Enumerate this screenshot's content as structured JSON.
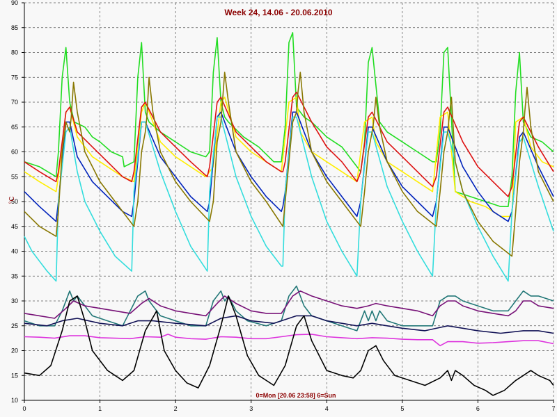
{
  "chart_data": {
    "type": "line",
    "title": "Week 24, 14.06 - 20.06.2010",
    "caption": "0=Mon [20.06 23:58] 6=Sun",
    "ylabel": "°C",
    "xlabel": "",
    "xlim": [
      0,
      7
    ],
    "ylim": [
      10,
      90
    ],
    "xticks": [
      "0",
      "1",
      "2",
      "3",
      "4",
      "5",
      "6",
      "7"
    ],
    "yticks": [
      "10",
      "15",
      "20",
      "25",
      "30",
      "35",
      "40",
      "45",
      "50",
      "55",
      "60",
      "65",
      "70",
      "75",
      "80",
      "85",
      "90"
    ],
    "grid": true,
    "series": [
      {
        "color": "#22dd22",
        "x": [
          0,
          0.2,
          0.42,
          0.45,
          0.5,
          0.55,
          0.6,
          0.66,
          0.8,
          0.9,
          1.0,
          1.15,
          1.3,
          1.32,
          1.45,
          1.5,
          1.55,
          1.6,
          1.65,
          1.8,
          2.0,
          2.2,
          2.4,
          2.45,
          2.5,
          2.55,
          2.6,
          2.65,
          2.7,
          2.9,
          3.1,
          3.3,
          3.4,
          3.45,
          3.5,
          3.55,
          3.6,
          3.7,
          3.8,
          4.0,
          4.2,
          4.4,
          4.45,
          4.5,
          4.55,
          4.6,
          4.7,
          4.8,
          5.0,
          5.2,
          5.4,
          5.45,
          5.5,
          5.55,
          5.6,
          5.7,
          5.9,
          6.1,
          6.3,
          6.4,
          6.45,
          6.5,
          6.55,
          6.6,
          6.7,
          6.85,
          7.0
        ],
        "y": [
          58,
          57,
          55,
          60,
          75,
          81,
          70,
          66,
          65,
          63,
          62,
          60,
          59,
          57,
          58,
          75,
          82,
          68,
          66,
          64,
          62,
          60,
          59,
          60,
          76,
          83,
          70,
          67,
          66,
          63,
          61,
          58,
          58,
          65,
          82,
          84,
          69,
          67,
          66,
          63,
          61,
          57,
          56,
          62,
          78,
          81,
          66,
          64,
          62,
          60,
          58,
          58,
          64,
          80,
          81,
          52,
          51,
          50,
          49,
          49,
          55,
          72,
          80,
          66,
          63,
          62,
          60
        ]
      },
      {
        "color": "#ffee00",
        "x": [
          0,
          0.2,
          0.42,
          0.45,
          0.55,
          0.6,
          0.7,
          0.9,
          1.1,
          1.3,
          1.45,
          1.55,
          1.6,
          1.8,
          2.0,
          2.2,
          2.4,
          2.5,
          2.6,
          2.65,
          2.8,
          3.0,
          3.2,
          3.4,
          3.5,
          3.6,
          3.65,
          3.8,
          4.0,
          4.2,
          4.4,
          4.5,
          4.6,
          4.65,
          4.8,
          5.0,
          5.2,
          5.4,
          5.5,
          5.6,
          5.7,
          5.9,
          6.1,
          6.3,
          6.45,
          6.5,
          6.6,
          6.7,
          6.85,
          7.0
        ],
        "y": [
          56,
          54,
          52,
          55,
          68,
          69,
          63,
          59,
          57,
          55,
          54,
          68,
          70,
          62,
          59,
          57,
          55,
          57,
          70,
          71,
          63,
          60,
          58,
          56,
          70,
          71,
          64,
          60,
          58,
          56,
          54,
          66,
          67,
          62,
          58,
          56,
          54,
          52,
          67,
          68,
          52,
          50,
          49,
          47,
          47,
          66,
          67,
          61,
          58,
          57
        ]
      },
      {
        "color": "#dd1111",
        "x": [
          0,
          0.2,
          0.42,
          0.45,
          0.55,
          0.6,
          0.7,
          0.9,
          1.1,
          1.3,
          1.42,
          1.45,
          1.55,
          1.6,
          1.8,
          2.0,
          2.2,
          2.42,
          2.45,
          2.55,
          2.6,
          2.8,
          3.0,
          3.2,
          3.4,
          3.42,
          3.45,
          3.55,
          3.6,
          3.8,
          4.0,
          4.2,
          4.4,
          4.45,
          4.55,
          4.6,
          4.8,
          5.0,
          5.2,
          5.4,
          5.45,
          5.55,
          5.6,
          5.8,
          6.0,
          6.2,
          6.4,
          6.45,
          6.55,
          6.6,
          6.8,
          7.0
        ],
        "y": [
          58,
          56,
          54,
          56,
          68,
          69,
          64,
          61,
          58,
          55,
          54,
          56,
          69,
          70,
          64,
          61,
          58,
          55,
          57,
          70,
          71,
          64,
          61,
          58,
          56,
          56,
          58,
          71,
          72,
          66,
          61,
          58,
          54,
          56,
          67,
          68,
          62,
          59,
          56,
          53,
          55,
          68,
          69,
          62,
          57,
          54,
          51,
          53,
          66,
          67,
          61,
          56
        ]
      },
      {
        "color": "#0022bb",
        "x": [
          0,
          0.2,
          0.42,
          0.45,
          0.55,
          0.6,
          0.7,
          0.9,
          1.1,
          1.3,
          1.42,
          1.45,
          1.55,
          1.6,
          1.8,
          2.0,
          2.2,
          2.42,
          2.45,
          2.55,
          2.6,
          2.8,
          3.0,
          3.2,
          3.4,
          3.42,
          3.45,
          3.55,
          3.6,
          3.8,
          4.0,
          4.2,
          4.4,
          4.45,
          4.55,
          4.6,
          4.8,
          5.0,
          5.2,
          5.4,
          5.45,
          5.55,
          5.6,
          5.8,
          6.0,
          6.2,
          6.4,
          6.45,
          6.55,
          6.6,
          6.8,
          7.0
        ],
        "y": [
          52,
          49,
          46,
          50,
          66,
          66,
          59,
          54,
          51,
          48,
          47,
          50,
          66,
          66,
          59,
          55,
          51,
          48,
          50,
          67,
          68,
          60,
          55,
          51,
          48,
          49,
          52,
          68,
          68,
          60,
          55,
          51,
          47,
          50,
          65,
          65,
          58,
          53,
          50,
          47,
          50,
          65,
          65,
          57,
          52,
          48,
          46,
          48,
          63,
          64,
          57,
          51
        ]
      },
      {
        "color": "#33dddd",
        "x": [
          0,
          0.1,
          0.2,
          0.3,
          0.42,
          0.45,
          0.55,
          0.6,
          0.7,
          0.8,
          1.0,
          1.2,
          1.42,
          1.45,
          1.55,
          1.6,
          1.8,
          2.0,
          2.2,
          2.42,
          2.45,
          2.55,
          2.6,
          2.8,
          3.0,
          3.2,
          3.4,
          3.42,
          3.45,
          3.55,
          3.6,
          3.8,
          4.0,
          4.2,
          4.4,
          4.45,
          4.55,
          4.6,
          4.8,
          5.0,
          5.2,
          5.4,
          5.45,
          5.55,
          5.6,
          5.8,
          6.0,
          6.2,
          6.4,
          6.45,
          6.55,
          6.6,
          6.8,
          7.0
        ],
        "y": [
          43,
          40,
          38,
          36,
          34,
          50,
          64,
          65,
          56,
          50,
          44,
          39,
          36,
          52,
          66,
          66,
          56,
          48,
          41,
          36,
          52,
          67,
          67,
          55,
          47,
          41,
          37,
          37,
          52,
          67,
          67,
          55,
          46,
          40,
          35,
          50,
          64,
          64,
          53,
          46,
          40,
          35,
          50,
          64,
          64,
          52,
          45,
          39,
          34,
          48,
          62,
          63,
          53,
          44
        ]
      },
      {
        "color": "#887700",
        "x": [
          0,
          0.2,
          0.42,
          0.45,
          0.5,
          0.55,
          0.6,
          0.62,
          0.65,
          0.7,
          0.8,
          1.0,
          1.2,
          1.45,
          1.5,
          1.55,
          1.6,
          1.62,
          1.65,
          1.7,
          1.8,
          2.0,
          2.2,
          2.45,
          2.5,
          2.55,
          2.6,
          2.62,
          2.65,
          2.7,
          2.8,
          3.0,
          3.2,
          3.42,
          3.5,
          3.55,
          3.6,
          3.62,
          3.65,
          3.7,
          3.8,
          4.0,
          4.2,
          4.45,
          4.5,
          4.55,
          4.6,
          4.62,
          4.65,
          4.7,
          4.8,
          5.0,
          5.2,
          5.45,
          5.5,
          5.55,
          5.6,
          5.62,
          5.65,
          5.7,
          5.8,
          6.0,
          6.2,
          6.45,
          6.5,
          6.55,
          6.6,
          6.62,
          6.65,
          6.7,
          6.8,
          7.0
        ],
        "y": [
          48,
          45,
          43,
          48,
          60,
          66,
          64,
          67,
          74,
          68,
          60,
          54,
          50,
          45,
          50,
          60,
          64,
          67,
          75,
          68,
          60,
          54,
          50,
          46,
          50,
          62,
          66,
          70,
          76,
          70,
          60,
          54,
          50,
          45,
          58,
          66,
          68,
          72,
          76,
          68,
          60,
          54,
          50,
          45,
          52,
          60,
          64,
          66,
          71,
          65,
          58,
          52,
          48,
          45,
          52,
          60,
          64,
          67,
          71,
          58,
          52,
          46,
          42,
          39,
          48,
          58,
          64,
          68,
          73,
          65,
          56,
          50
        ]
      },
      {
        "color": "#227777",
        "x": [
          0,
          0.2,
          0.4,
          0.5,
          0.6,
          0.65,
          0.7,
          0.8,
          0.9,
          1.1,
          1.3,
          1.5,
          1.6,
          1.65,
          1.7,
          1.8,
          2.0,
          2.2,
          2.4,
          2.5,
          2.6,
          2.65,
          2.7,
          2.8,
          2.95,
          3.2,
          3.4,
          3.5,
          3.6,
          3.65,
          3.7,
          3.8,
          4.0,
          4.2,
          4.4,
          4.5,
          4.55,
          4.6,
          4.65,
          4.7,
          4.8,
          5.0,
          5.2,
          5.4,
          5.5,
          5.6,
          5.7,
          5.8,
          6.0,
          6.2,
          6.4,
          6.5,
          6.6,
          6.7,
          6.8,
          7.0
        ],
        "y": [
          26,
          25,
          25,
          28,
          32,
          30,
          31,
          29,
          27,
          26,
          25,
          31,
          32,
          30,
          29,
          27,
          26,
          25,
          25,
          30,
          32,
          30,
          31,
          28,
          26,
          25,
          26,
          31,
          33,
          31,
          29,
          27,
          26,
          25,
          24,
          28,
          26,
          28,
          26,
          28,
          26,
          25,
          25,
          25,
          30,
          31,
          31,
          30,
          29,
          28,
          28,
          30,
          32,
          31,
          31,
          30
        ]
      },
      {
        "color": "#771177",
        "x": [
          0,
          0.2,
          0.4,
          0.55,
          0.65,
          0.8,
          1.0,
          1.2,
          1.4,
          1.55,
          1.65,
          1.8,
          2.0,
          2.2,
          2.4,
          2.55,
          2.65,
          2.8,
          3.0,
          3.2,
          3.4,
          3.55,
          3.65,
          3.8,
          4.0,
          4.2,
          4.4,
          4.55,
          4.65,
          4.8,
          5.0,
          5.2,
          5.4,
          5.5,
          5.6,
          5.7,
          5.8,
          6.0,
          6.2,
          6.4,
          6.5,
          6.6,
          6.7,
          6.8,
          7.0
        ],
        "y": [
          27.5,
          27,
          26.5,
          28.5,
          30,
          29,
          28.5,
          28,
          27.5,
          29.5,
          30.5,
          29,
          28,
          27.5,
          27,
          29.5,
          31,
          29.5,
          28,
          27.5,
          27.5,
          31,
          32,
          31,
          30,
          29,
          28.5,
          29,
          29.5,
          29,
          28.5,
          28,
          27,
          29,
          30,
          30,
          29,
          28,
          27.5,
          27,
          28,
          30,
          30,
          29,
          28.5
        ]
      },
      {
        "color": "#111155",
        "x": [
          0,
          0.3,
          0.5,
          0.7,
          1.0,
          1.3,
          1.5,
          1.7,
          2.0,
          2.4,
          2.6,
          2.8,
          3.0,
          3.3,
          3.6,
          3.8,
          4.0,
          4.4,
          4.6,
          4.8,
          5.0,
          5.3,
          5.6,
          5.8,
          6.0,
          6.3,
          6.6,
          6.8,
          7.0
        ],
        "y": [
          25.5,
          25,
          26,
          26.5,
          25.5,
          25,
          26,
          26,
          25.5,
          25,
          26.5,
          27,
          26,
          25.5,
          27,
          27,
          26,
          25,
          25.5,
          25,
          24.5,
          24,
          25,
          24.5,
          24,
          23.5,
          24,
          24,
          23.5
        ]
      },
      {
        "color": "#dd33dd",
        "x": [
          0,
          0.2,
          0.4,
          0.6,
          0.8,
          1.0,
          1.2,
          1.4,
          1.6,
          1.8,
          1.9,
          2.0,
          2.2,
          2.4,
          2.6,
          2.8,
          3.0,
          3.2,
          3.4,
          3.6,
          3.8,
          4.0,
          4.2,
          4.4,
          4.6,
          4.8,
          5.0,
          5.2,
          5.4,
          5.5,
          5.6,
          5.8,
          6.0,
          6.2,
          6.4,
          6.6,
          6.8,
          7.0
        ],
        "y": [
          22.8,
          22.7,
          22.5,
          23,
          23,
          22.6,
          22.5,
          22.4,
          22.8,
          22.7,
          23.3,
          22.7,
          22.4,
          22.3,
          22.8,
          22.7,
          22.4,
          22.4,
          22.8,
          23.2,
          23.3,
          22.8,
          22.6,
          22.4,
          22.6,
          22.5,
          22.3,
          22.2,
          22.2,
          21,
          21.8,
          21.8,
          21.5,
          21.6,
          21.8,
          22,
          22,
          21.4
        ]
      },
      {
        "color": "#000000",
        "x": [
          0,
          0.2,
          0.35,
          0.5,
          0.6,
          0.7,
          0.8,
          0.9,
          1.1,
          1.3,
          1.45,
          1.6,
          1.75,
          1.85,
          2.0,
          2.15,
          2.3,
          2.45,
          2.6,
          2.7,
          2.8,
          2.95,
          3.1,
          3.3,
          3.45,
          3.6,
          3.7,
          3.8,
          4.0,
          4.2,
          4.35,
          4.45,
          4.55,
          4.65,
          4.75,
          4.9,
          5.1,
          5.3,
          5.5,
          5.6,
          5.65,
          5.7,
          5.8,
          5.95,
          6.1,
          6.2,
          6.35,
          6.5,
          6.6,
          6.7,
          6.8,
          6.95,
          7.0
        ],
        "y": [
          15.5,
          15,
          17,
          24,
          30,
          31,
          26,
          20,
          16,
          14,
          16,
          24,
          28,
          20,
          16,
          13.5,
          12.5,
          17,
          25,
          31,
          27,
          19,
          15,
          13,
          17,
          25,
          27,
          22,
          16,
          15,
          14.5,
          16,
          20,
          21,
          18,
          15,
          14,
          13,
          14.5,
          16,
          14,
          16,
          15,
          13,
          12,
          11,
          12,
          14,
          15,
          16,
          15,
          14,
          13
        ]
      }
    ]
  }
}
